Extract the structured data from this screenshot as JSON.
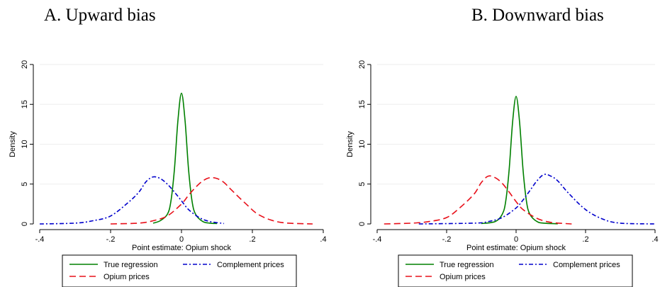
{
  "chart_data": [
    {
      "type": "line",
      "title": "A. Upward bias",
      "xlabel": "Point estimate: Opium shock",
      "ylabel": "Density",
      "xlim": [
        -0.4,
        0.4
      ],
      "ylim": [
        0,
        20
      ],
      "xticks": [
        -0.4,
        -0.2,
        0,
        0.2,
        0.4
      ],
      "xtick_labels": [
        "-.4",
        "-.2",
        "0",
        ".2",
        ".4"
      ],
      "yticks": [
        0,
        5,
        10,
        15,
        20
      ],
      "ytick_labels": [
        "0",
        "5",
        "10",
        "15",
        "20"
      ],
      "grid": "horizontal",
      "legend_position": "bottom",
      "series": [
        {
          "name": "True regression",
          "color": "#008000",
          "dash": "solid",
          "x": [
            -0.08,
            -0.06,
            -0.04,
            -0.03,
            -0.02,
            -0.01,
            0,
            0.01,
            0.02,
            0.03,
            0.04,
            0.06,
            0.08,
            0.1
          ],
          "y": [
            0.1,
            0.4,
            1.2,
            2.8,
            6.8,
            13.0,
            16.4,
            13.0,
            6.8,
            2.8,
            1.2,
            0.3,
            0.1,
            0.05
          ]
        },
        {
          "name": "Complement prices",
          "color": "#0000cc",
          "dash": "dashdot",
          "x": [
            -0.4,
            -0.3,
            -0.25,
            -0.2,
            -0.15,
            -0.12,
            -0.1,
            -0.08,
            -0.06,
            -0.04,
            -0.02,
            0,
            0.02,
            0.05,
            0.08,
            0.12
          ],
          "y": [
            0.0,
            0.1,
            0.4,
            1.0,
            2.7,
            4.0,
            5.3,
            5.9,
            5.7,
            5.0,
            4.0,
            2.9,
            1.8,
            0.8,
            0.3,
            0.05
          ]
        },
        {
          "name": "Opium prices",
          "color": "#e8101a",
          "dash": "dashed",
          "x": [
            -0.2,
            -0.12,
            -0.08,
            -0.04,
            0,
            0.02,
            0.04,
            0.06,
            0.08,
            0.1,
            0.12,
            0.14,
            0.18,
            0.22,
            0.28,
            0.37
          ],
          "y": [
            0.0,
            0.1,
            0.4,
            1.0,
            2.5,
            3.6,
            4.6,
            5.4,
            5.8,
            5.7,
            5.2,
            4.3,
            2.6,
            1.1,
            0.2,
            0.0
          ]
        }
      ]
    },
    {
      "type": "line",
      "title": "B. Downward bias",
      "xlabel": "Point estimate: Opium shock",
      "ylabel": "Density",
      "xlim": [
        -0.4,
        0.4
      ],
      "ylim": [
        0,
        20
      ],
      "xticks": [
        -0.4,
        -0.2,
        0,
        0.2,
        0.4
      ],
      "xtick_labels": [
        "-.4",
        "-.2",
        "0",
        ".2",
        ".4"
      ],
      "yticks": [
        0,
        5,
        10,
        15,
        20
      ],
      "ytick_labels": [
        "0",
        "5",
        "10",
        "15",
        "20"
      ],
      "grid": "horizontal",
      "legend_position": "bottom",
      "series": [
        {
          "name": "True regression",
          "color": "#008000",
          "dash": "solid",
          "x": [
            -0.1,
            -0.06,
            -0.04,
            -0.03,
            -0.02,
            -0.01,
            0,
            0.01,
            0.02,
            0.03,
            0.04,
            0.06,
            0.08,
            0.12
          ],
          "y": [
            0.05,
            0.3,
            1.2,
            2.8,
            6.8,
            12.8,
            16.0,
            12.8,
            6.8,
            2.8,
            1.2,
            0.3,
            0.1,
            0.02
          ]
        },
        {
          "name": "Complement prices",
          "color": "#0000cc",
          "dash": "dashdot",
          "x": [
            -0.28,
            -0.12,
            -0.08,
            -0.04,
            0,
            0.02,
            0.04,
            0.06,
            0.08,
            0.1,
            0.12,
            0.15,
            0.2,
            0.25,
            0.3,
            0.4
          ],
          "y": [
            0.0,
            0.1,
            0.3,
            0.8,
            2.0,
            3.0,
            4.2,
            5.4,
            6.2,
            6.0,
            5.4,
            3.9,
            1.8,
            0.6,
            0.1,
            0.0
          ]
        },
        {
          "name": "Opium prices",
          "color": "#e8101a",
          "dash": "dashed",
          "x": [
            -0.38,
            -0.3,
            -0.25,
            -0.2,
            -0.16,
            -0.12,
            -0.1,
            -0.08,
            -0.06,
            -0.04,
            -0.02,
            0,
            0.02,
            0.06,
            0.1,
            0.16
          ],
          "y": [
            0.0,
            0.1,
            0.3,
            0.8,
            2.1,
            3.8,
            5.2,
            6.0,
            5.8,
            5.1,
            4.0,
            2.8,
            1.8,
            0.7,
            0.2,
            0.0
          ]
        }
      ]
    }
  ]
}
